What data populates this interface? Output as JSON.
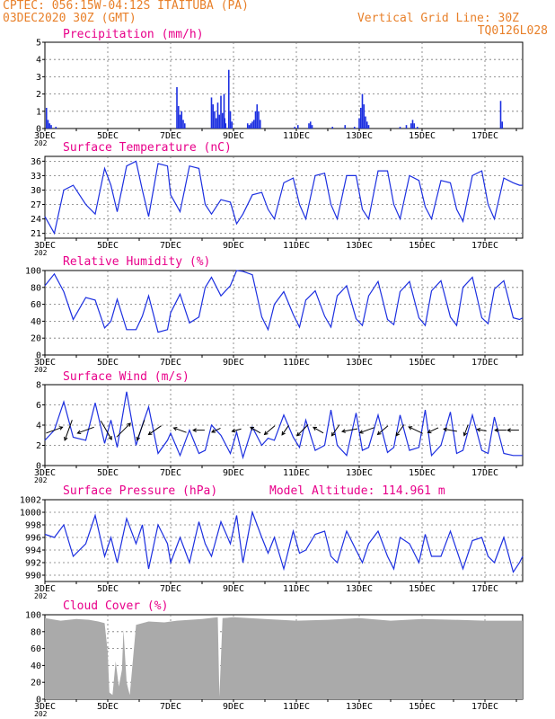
{
  "header": {
    "line1_left": "CPTEC:   056:15W-04:12S   ITAITUBA (PA)",
    "line2_left": "03DEC2020 30Z (GMT)",
    "line1_right": "Vertical Grid Line: 30Z",
    "line2_right": "TQ0126L028"
  },
  "colors": {
    "header": "#e8802a",
    "title": "#e8008a",
    "line": "#1c2fe0",
    "cloud": "#aaaaaa"
  },
  "x_tick_labels": [
    "3DEC",
    "5DEC",
    "7DEC",
    "9DEC",
    "11DEC",
    "13DEC",
    "15DEC",
    "17DEC"
  ],
  "year_stub": "202",
  "chart_data": [
    {
      "type": "bar",
      "title": "Precipitation (mm/h)",
      "ylim": [
        0,
        5
      ],
      "yticks": [
        0,
        1,
        2,
        3,
        4,
        5
      ],
      "x_range_days": [
        3.0,
        18.2
      ],
      "bars": [
        [
          3.05,
          1.2
        ],
        [
          3.1,
          0.5
        ],
        [
          3.15,
          0.3
        ],
        [
          3.2,
          0.2
        ],
        [
          3.35,
          0.1
        ],
        [
          7.2,
          2.4
        ],
        [
          7.25,
          1.3
        ],
        [
          7.3,
          0.8
        ],
        [
          7.35,
          1.0
        ],
        [
          7.4,
          0.5
        ],
        [
          7.45,
          0.3
        ],
        [
          8.3,
          1.8
        ],
        [
          8.35,
          1.4
        ],
        [
          8.4,
          1.0
        ],
        [
          8.45,
          0.6
        ],
        [
          8.5,
          1.5
        ],
        [
          8.55,
          0.8
        ],
        [
          8.6,
          1.9
        ],
        [
          8.65,
          0.9
        ],
        [
          8.7,
          2.0
        ],
        [
          8.72,
          0.6
        ],
        [
          8.75,
          0.3
        ],
        [
          8.85,
          3.4
        ],
        [
          8.9,
          1.0
        ],
        [
          8.95,
          0.4
        ],
        [
          9.45,
          0.3
        ],
        [
          9.5,
          0.2
        ],
        [
          9.55,
          0.3
        ],
        [
          9.6,
          0.4
        ],
        [
          9.65,
          0.5
        ],
        [
          9.7,
          1.0
        ],
        [
          9.75,
          1.4
        ],
        [
          9.8,
          1.0
        ],
        [
          9.85,
          0.5
        ],
        [
          10.95,
          0.1
        ],
        [
          11.05,
          0.2
        ],
        [
          11.4,
          0.3
        ],
        [
          11.45,
          0.4
        ],
        [
          11.5,
          0.2
        ],
        [
          12.15,
          0.1
        ],
        [
          12.55,
          0.2
        ],
        [
          12.85,
          0.1
        ],
        [
          13.0,
          0.6
        ],
        [
          13.05,
          1.2
        ],
        [
          13.1,
          2.0
        ],
        [
          13.15,
          1.4
        ],
        [
          13.2,
          0.7
        ],
        [
          13.25,
          0.4
        ],
        [
          13.3,
          0.2
        ],
        [
          14.3,
          0.1
        ],
        [
          14.5,
          0.2
        ],
        [
          14.65,
          0.3
        ],
        [
          14.7,
          0.5
        ],
        [
          14.75,
          0.3
        ],
        [
          14.85,
          0.1
        ],
        [
          17.5,
          1.6
        ],
        [
          17.55,
          0.4
        ]
      ]
    },
    {
      "type": "line",
      "title": "Surface Temperature (nC)",
      "ylim": [
        20,
        37
      ],
      "yticks": [
        21,
        24,
        27,
        30,
        33,
        36
      ],
      "x": [
        3.0,
        3.3,
        3.6,
        3.9,
        4.3,
        4.6,
        4.9,
        5.1,
        5.3,
        5.6,
        5.9,
        6.1,
        6.3,
        6.6,
        6.9,
        7.0,
        7.3,
        7.6,
        7.9,
        8.1,
        8.3,
        8.6,
        8.9,
        9.1,
        9.3,
        9.6,
        9.9,
        10.1,
        10.3,
        10.6,
        10.9,
        11.1,
        11.3,
        11.6,
        11.9,
        12.1,
        12.3,
        12.6,
        12.9,
        13.1,
        13.3,
        13.6,
        13.9,
        14.1,
        14.3,
        14.6,
        14.9,
        15.1,
        15.3,
        15.6,
        15.9,
        16.1,
        16.3,
        16.6,
        16.9,
        17.1,
        17.3,
        17.6,
        17.9,
        18.1,
        18.2
      ],
      "values": [
        24.5,
        21,
        30,
        31,
        27,
        25,
        34.5,
        31,
        25.5,
        35,
        36,
        30,
        24.5,
        35.5,
        35,
        29,
        25.5,
        35,
        34.5,
        27,
        25,
        28,
        27.5,
        23,
        25,
        29,
        29.5,
        26,
        24,
        31.5,
        32.5,
        27,
        24,
        33,
        33.5,
        27,
        24,
        33,
        33,
        26,
        24,
        34,
        34,
        27,
        24,
        33,
        32,
        26.5,
        24,
        32,
        31.5,
        26,
        23.5,
        33,
        34,
        27,
        24,
        32.5,
        31.5,
        31,
        31
      ]
    },
    {
      "type": "line",
      "title": "Relative Humidity (%)",
      "ylim": [
        0,
        100
      ],
      "yticks": [
        0,
        20,
        40,
        60,
        80,
        100
      ],
      "x": [
        3.0,
        3.3,
        3.6,
        3.9,
        4.3,
        4.6,
        4.9,
        5.1,
        5.3,
        5.6,
        5.9,
        6.1,
        6.3,
        6.6,
        6.9,
        7.0,
        7.3,
        7.6,
        7.9,
        8.1,
        8.3,
        8.6,
        8.9,
        9.1,
        9.3,
        9.6,
        9.9,
        10.1,
        10.3,
        10.6,
        10.9,
        11.1,
        11.3,
        11.6,
        11.9,
        12.1,
        12.3,
        12.6,
        12.9,
        13.1,
        13.3,
        13.6,
        13.9,
        14.1,
        14.3,
        14.6,
        14.9,
        15.1,
        15.3,
        15.6,
        15.9,
        16.1,
        16.3,
        16.6,
        16.9,
        17.1,
        17.3,
        17.6,
        17.9,
        18.1,
        18.2
      ],
      "values": [
        82,
        96,
        75,
        42,
        68,
        65,
        32,
        40,
        66,
        30,
        30,
        46,
        70,
        27,
        30,
        50,
        72,
        38,
        45,
        80,
        92,
        70,
        82,
        100,
        99,
        95,
        45,
        30,
        60,
        75,
        48,
        33,
        65,
        76,
        46,
        33,
        70,
        82,
        43,
        35,
        70,
        87,
        42,
        36,
        75,
        87,
        44,
        35,
        76,
        88,
        45,
        35,
        80,
        92,
        44,
        37,
        78,
        88,
        44,
        42,
        44
      ]
    },
    {
      "type": "line",
      "title": "Surface Wind (m/s)",
      "ylim": [
        0,
        8
      ],
      "yticks": [
        0,
        2,
        4,
        6,
        8
      ],
      "x": [
        3.0,
        3.3,
        3.6,
        3.9,
        4.3,
        4.6,
        4.9,
        5.1,
        5.3,
        5.6,
        5.9,
        6.1,
        6.3,
        6.6,
        6.9,
        7.0,
        7.3,
        7.6,
        7.9,
        8.1,
        8.3,
        8.6,
        8.9,
        9.1,
        9.3,
        9.6,
        9.9,
        10.1,
        10.3,
        10.6,
        10.9,
        11.1,
        11.3,
        11.6,
        11.9,
        12.1,
        12.3,
        12.6,
        12.9,
        13.1,
        13.3,
        13.6,
        13.9,
        14.1,
        14.3,
        14.6,
        14.9,
        15.1,
        15.3,
        15.6,
        15.9,
        16.1,
        16.3,
        16.6,
        16.9,
        17.1,
        17.3,
        17.6,
        17.9,
        18.1,
        18.2
      ],
      "values": [
        2.5,
        3.5,
        6.3,
        2.8,
        2.5,
        6.2,
        2.2,
        4.5,
        1.8,
        7.3,
        2.0,
        4.0,
        5.8,
        1.2,
        2.5,
        3.2,
        1.0,
        3.5,
        1.2,
        1.5,
        4.0,
        3.0,
        1.2,
        3.3,
        0.8,
        3.8,
        2.0,
        2.7,
        2.5,
        5.0,
        2.8,
        1.8,
        4.5,
        1.5,
        2.0,
        5.5,
        2.0,
        1.0,
        5.2,
        1.5,
        1.8,
        5.0,
        1.3,
        1.8,
        5.0,
        1.5,
        1.8,
        5.5,
        1.0,
        2.0,
        5.3,
        1.2,
        1.5,
        5.0,
        1.5,
        1.2,
        4.8,
        1.2,
        1.0,
        1.0,
        1.0
      ],
      "arrow_days": [
        3.3,
        3.75,
        4.3,
        4.95,
        5.5,
        6.05,
        6.5,
        7.3,
        7.9,
        8.45,
        9.1,
        9.7,
        10.15,
        10.65,
        11.2,
        11.7,
        12.25,
        12.7,
        13.25,
        13.75,
        14.3,
        14.8,
        15.35,
        15.9,
        16.4,
        16.9,
        17.5,
        17.9
      ],
      "arrow_speeds": [
        3,
        4,
        3,
        4,
        3.5,
        4,
        2.5,
        2,
        1.5,
        1,
        1,
        1.5,
        2,
        1.5,
        2.5,
        1.5,
        2,
        2.5,
        2.5,
        2,
        2,
        2.5,
        1.5,
        2,
        1.5,
        1,
        1.5,
        1.5
      ],
      "arrow_dirs": [
        20,
        250,
        200,
        300,
        45,
        250,
        215,
        160,
        180,
        205,
        195,
        150,
        220,
        235,
        225,
        150,
        235,
        190,
        200,
        220,
        235,
        155,
        205,
        170,
        250,
        170,
        180,
        180
      ]
    },
    {
      "type": "line",
      "title": "Surface Pressure (hPa)",
      "annotation": "Model Altitude: 114.961 m",
      "ylim": [
        989,
        1002
      ],
      "yticks": [
        990,
        992,
        994,
        996,
        998,
        1000,
        1002
      ],
      "x": [
        3.0,
        3.3,
        3.6,
        3.9,
        4.3,
        4.6,
        4.9,
        5.1,
        5.3,
        5.6,
        5.9,
        6.1,
        6.3,
        6.6,
        6.9,
        7.0,
        7.3,
        7.6,
        7.9,
        8.1,
        8.3,
        8.6,
        8.9,
        9.1,
        9.3,
        9.6,
        9.9,
        10.1,
        10.3,
        10.6,
        10.9,
        11.1,
        11.3,
        11.6,
        11.9,
        12.1,
        12.3,
        12.6,
        12.9,
        13.1,
        13.3,
        13.6,
        13.9,
        14.1,
        14.3,
        14.6,
        14.9,
        15.1,
        15.3,
        15.6,
        15.9,
        16.1,
        16.3,
        16.6,
        16.9,
        17.1,
        17.3,
        17.6,
        17.9,
        18.1,
        18.2
      ],
      "values": [
        996.5,
        996,
        998,
        993,
        995,
        999.5,
        993,
        996,
        992,
        999,
        995,
        998,
        991,
        998,
        995,
        992,
        996,
        992,
        998.5,
        995,
        993,
        998.5,
        995,
        999.5,
        992,
        1000,
        996,
        993.5,
        996,
        991,
        997,
        993.5,
        994,
        996.5,
        997,
        993,
        992,
        997,
        994,
        992,
        995,
        997,
        993,
        991,
        996,
        995,
        992,
        996.5,
        993,
        993,
        997,
        994,
        991,
        995.5,
        996,
        993,
        992,
        996,
        990.5,
        992,
        993
      ]
    },
    {
      "type": "area",
      "title": "Cloud Cover (%)",
      "ylim": [
        0,
        100
      ],
      "yticks": [
        0,
        20,
        40,
        60,
        80,
        100
      ],
      "x": [
        3.0,
        3.5,
        4.0,
        4.4,
        4.7,
        4.9,
        5.0,
        5.05,
        5.15,
        5.25,
        5.35,
        5.45,
        5.5,
        5.6,
        5.65,
        5.7,
        5.9,
        6.3,
        6.8,
        7.2,
        8.0,
        8.5,
        8.55,
        8.65,
        9.0,
        10.0,
        11.0,
        12.0,
        13.0,
        14.0,
        15.0,
        16.0,
        17.0,
        18.2
      ],
      "values": [
        96,
        93,
        95,
        94,
        92,
        90,
        55,
        8,
        5,
        45,
        15,
        35,
        82,
        20,
        12,
        5,
        88,
        92,
        91,
        93,
        95,
        97,
        3,
        96,
        97,
        95,
        93,
        94,
        96,
        93,
        95,
        94,
        93,
        93
      ]
    }
  ]
}
